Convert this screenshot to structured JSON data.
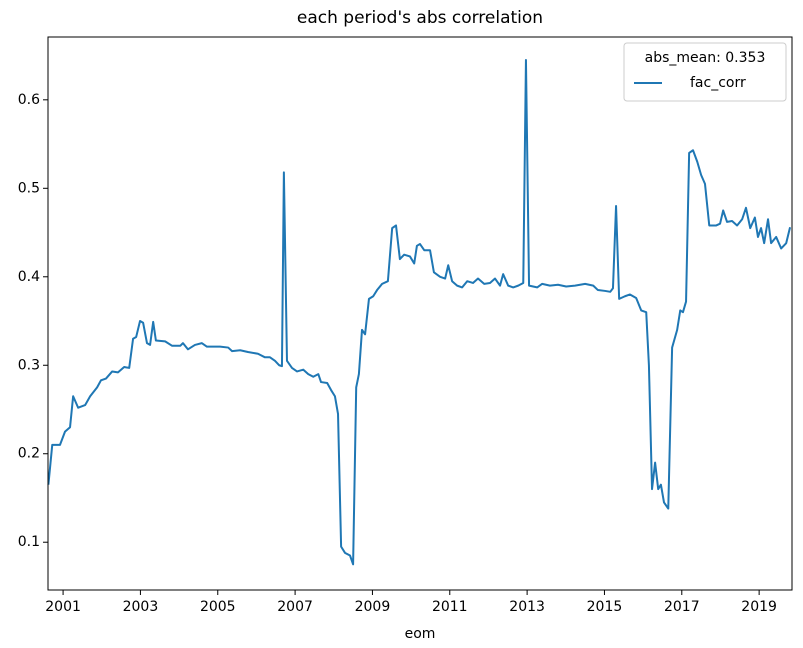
{
  "chart_data": {
    "type": "line",
    "title": "each period's abs correlation",
    "xlabel": "eom",
    "legend_title": "abs_mean: 0.353",
    "legend": "upper right",
    "x": [
      2000.62,
      2000.72,
      2000.92,
      2001.05,
      2001.18,
      2001.26,
      2001.39,
      2001.57,
      2001.7,
      2001.88,
      2001.98,
      2002.11,
      2002.27,
      2002.42,
      2002.58,
      2002.71,
      2002.81,
      2002.89,
      2002.99,
      2003.07,
      2003.17,
      2003.25,
      2003.33,
      2003.4,
      2003.64,
      2003.82,
      2004.03,
      2004.1,
      2004.23,
      2004.41,
      2004.59,
      2004.72,
      2005.06,
      2005.27,
      2005.37,
      2005.58,
      2005.78,
      2006.04,
      2006.22,
      2006.35,
      2006.48,
      2006.59,
      2006.66,
      2006.71,
      2006.79,
      2006.92,
      2007.05,
      2007.21,
      2007.34,
      2007.47,
      2007.6,
      2007.67,
      2007.83,
      2007.93,
      2008.03,
      2008.11,
      2008.19,
      2008.29,
      2008.42,
      2008.5,
      2008.58,
      2008.65,
      2008.73,
      2008.81,
      2008.91,
      2009.02,
      2009.12,
      2009.25,
      2009.4,
      2009.51,
      2009.61,
      2009.71,
      2009.82,
      2009.97,
      2010.08,
      2010.15,
      2010.23,
      2010.34,
      2010.49,
      2010.59,
      2010.75,
      2010.88,
      2010.96,
      2011.06,
      2011.19,
      2011.32,
      2011.45,
      2011.6,
      2011.73,
      2011.89,
      2012.04,
      2012.17,
      2012.3,
      2012.38,
      2012.51,
      2012.64,
      2012.77,
      2012.9,
      2012.97,
      2013.05,
      2013.26,
      2013.39,
      2013.59,
      2013.8,
      2014.01,
      2014.24,
      2014.5,
      2014.71,
      2014.83,
      2015.02,
      2015.15,
      2015.22,
      2015.3,
      2015.38,
      2015.53,
      2015.66,
      2015.82,
      2015.95,
      2016.08,
      2016.15,
      2016.23,
      2016.31,
      2016.39,
      2016.46,
      2016.54,
      2016.65,
      2016.75,
      2016.88,
      2016.96,
      2017.03,
      2017.11,
      2017.19,
      2017.29,
      2017.4,
      2017.5,
      2017.6,
      2017.71,
      2017.89,
      2017.99,
      2018.07,
      2018.17,
      2018.3,
      2018.43,
      2018.56,
      2018.66,
      2018.77,
      2018.89,
      2018.97,
      2019.05,
      2019.13,
      2019.23,
      2019.31,
      2019.44,
      2019.57,
      2019.7,
      2019.8
    ],
    "series": [
      {
        "name": "fac_corr",
        "color": "#1f77b4",
        "values": [
          0.165,
          0.21,
          0.21,
          0.225,
          0.23,
          0.265,
          0.252,
          0.255,
          0.265,
          0.275,
          0.283,
          0.285,
          0.293,
          0.292,
          0.298,
          0.297,
          0.33,
          0.332,
          0.35,
          0.348,
          0.325,
          0.323,
          0.349,
          0.328,
          0.327,
          0.322,
          0.322,
          0.325,
          0.318,
          0.323,
          0.325,
          0.321,
          0.321,
          0.32,
          0.316,
          0.317,
          0.315,
          0.313,
          0.309,
          0.309,
          0.305,
          0.3,
          0.299,
          0.518,
          0.305,
          0.297,
          0.293,
          0.295,
          0.29,
          0.287,
          0.29,
          0.281,
          0.28,
          0.272,
          0.265,
          0.245,
          0.095,
          0.088,
          0.085,
          0.075,
          0.275,
          0.29,
          0.34,
          0.335,
          0.375,
          0.378,
          0.385,
          0.392,
          0.395,
          0.455,
          0.458,
          0.42,
          0.425,
          0.423,
          0.415,
          0.435,
          0.437,
          0.43,
          0.43,
          0.405,
          0.4,
          0.398,
          0.413,
          0.395,
          0.39,
          0.388,
          0.395,
          0.393,
          0.398,
          0.392,
          0.393,
          0.398,
          0.39,
          0.403,
          0.39,
          0.388,
          0.39,
          0.393,
          0.645,
          0.39,
          0.388,
          0.392,
          0.39,
          0.391,
          0.389,
          0.39,
          0.392,
          0.39,
          0.385,
          0.384,
          0.383,
          0.387,
          0.48,
          0.375,
          0.378,
          0.38,
          0.376,
          0.362,
          0.36,
          0.3,
          0.16,
          0.19,
          0.16,
          0.165,
          0.145,
          0.138,
          0.32,
          0.34,
          0.362,
          0.36,
          0.372,
          0.54,
          0.543,
          0.53,
          0.515,
          0.505,
          0.458,
          0.458,
          0.46,
          0.475,
          0.462,
          0.463,
          0.458,
          0.465,
          0.478,
          0.455,
          0.467,
          0.445,
          0.455,
          0.438,
          0.465,
          0.438,
          0.445,
          0.432,
          0.438,
          0.456
        ]
      }
    ],
    "xlim": [
      2000.61,
      2019.85
    ],
    "xticks": [
      2001,
      2003,
      2005,
      2007,
      2009,
      2011,
      2013,
      2015,
      2017,
      2019
    ],
    "ylim": [
      0.046,
      0.671
    ],
    "yticks": [
      0.1,
      0.2,
      0.3,
      0.4,
      0.5,
      0.6
    ]
  }
}
